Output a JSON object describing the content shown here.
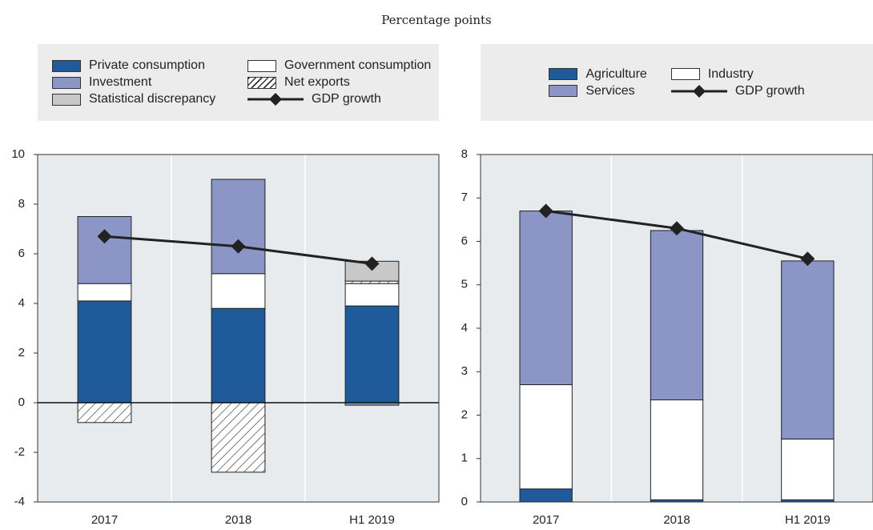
{
  "chart_data": [
    {
      "type": "bar",
      "stacked": true,
      "subtitle": "Percentage points",
      "categories": [
        "2017",
        "2018",
        "H1 2019"
      ],
      "series": [
        {
          "name": "Private consumption",
          "color": "#1f5a9b",
          "values": [
            4.1,
            3.8,
            3.9
          ]
        },
        {
          "name": "Government consumption",
          "color": "#ffffff",
          "values": [
            0.7,
            1.4,
            0.9
          ]
        },
        {
          "name": "Investment",
          "color": "#8c96c6",
          "values": [
            2.7,
            3.8,
            -0.1
          ]
        },
        {
          "name": "Net exports",
          "color": "#ffffff",
          "hatch": true,
          "values": [
            -0.8,
            -2.8,
            0.1
          ]
        },
        {
          "name": "Statistical discrepancy",
          "color": "#c8c8c8",
          "values": [
            0,
            0,
            0.8
          ]
        },
        {
          "name": "GDP growth",
          "type": "line",
          "color": "#222222",
          "marker": "diamond",
          "values": [
            6.7,
            6.3,
            5.6
          ]
        }
      ],
      "ylim": [
        -4,
        10
      ],
      "yticks": [
        -4,
        -2,
        0,
        2,
        4,
        6,
        8,
        10
      ]
    },
    {
      "type": "bar",
      "stacked": true,
      "categories": [
        "2017",
        "2018",
        "H1 2019"
      ],
      "series": [
        {
          "name": "Agriculture",
          "color": "#1f5a9b",
          "values": [
            0.3,
            0.05,
            0.05
          ]
        },
        {
          "name": "Industry",
          "color": "#ffffff",
          "values": [
            2.4,
            2.3,
            1.4
          ]
        },
        {
          "name": "Services",
          "color": "#8c96c6",
          "values": [
            4.0,
            3.9,
            4.1
          ]
        },
        {
          "name": "GDP growth",
          "type": "line",
          "color": "#222222",
          "marker": "diamond",
          "values": [
            6.7,
            6.3,
            5.6
          ]
        }
      ],
      "ylim": [
        0,
        8
      ],
      "yticks": [
        0,
        1,
        2,
        3,
        4,
        5,
        6,
        7,
        8
      ]
    }
  ]
}
